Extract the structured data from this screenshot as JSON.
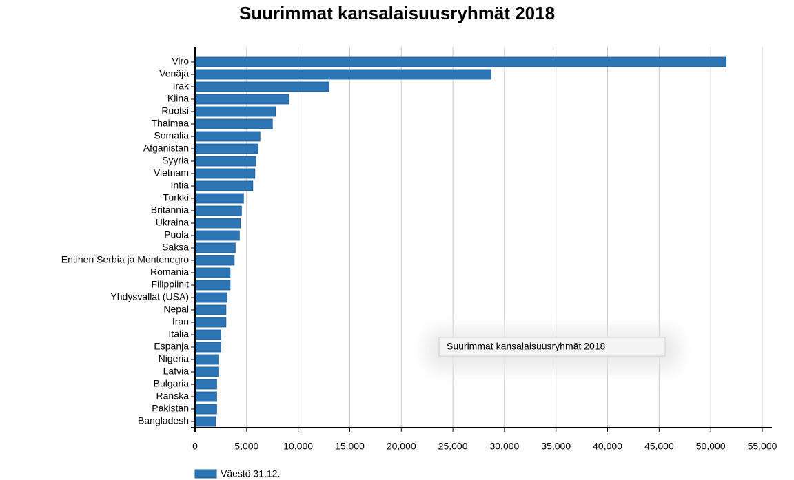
{
  "chart_data": {
    "type": "bar",
    "orientation": "horizontal",
    "title": "Suurimmat kansalaisuusryhmät 2018",
    "tooltip": "Suurimmat kansalaisuusryhmät 2018",
    "categories": [
      "Viro",
      "Venäjä",
      "Irak",
      "Kiina",
      "Ruotsi",
      "Thaimaa",
      "Somalia",
      "Afganistan",
      "Syyria",
      "Vietnam",
      "Intia",
      "Turkki",
      "Britannia",
      "Ukraina",
      "Puola",
      "Saksa",
      "Entinen Serbia ja Montenegro",
      "Romania",
      "Filippiinit",
      "Yhdysvallat (USA)",
      "Nepal",
      "Iran",
      "Italia",
      "Espanja",
      "Nigeria",
      "Latvia",
      "Bulgaria",
      "Ranska",
      "Pakistan",
      "Bangladesh"
    ],
    "series": [
      {
        "name": "Väestö 31.12.",
        "color": "#2e75b6",
        "values": [
          51500,
          28700,
          13000,
          9100,
          7800,
          7500,
          6300,
          6100,
          5900,
          5800,
          5600,
          4700,
          4500,
          4400,
          4300,
          3900,
          3800,
          3400,
          3400,
          3100,
          3000,
          3000,
          2500,
          2500,
          2300,
          2300,
          2100,
          2100,
          2100,
          2000
        ]
      }
    ],
    "xlim": [
      0,
      55000
    ],
    "xticks": [
      0,
      {
        "value": 5000,
        "label": "5,000"
      },
      {
        "value": 10000,
        "label": "10,000"
      },
      {
        "value": 15000,
        "label": "15,000"
      },
      {
        "value": 20000,
        "label": "20,000"
      },
      {
        "value": 25000,
        "label": "25,000"
      },
      {
        "value": 30000,
        "label": "30,000"
      },
      {
        "value": 35000,
        "label": "35,000"
      },
      {
        "value": 40000,
        "label": "40,000"
      },
      {
        "value": 45000,
        "label": "45,000"
      },
      {
        "value": 50000,
        "label": "50,000"
      },
      {
        "value": 55000,
        "label": "55,000"
      }
    ],
    "grid": true,
    "legend": "bottom-left"
  }
}
